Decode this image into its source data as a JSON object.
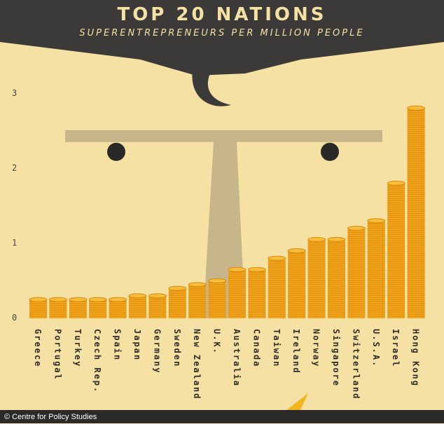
{
  "header": {
    "title": "TOP 20 NATIONS",
    "subtitle": "SUPERENTREPRENEURS PER MILLION PEOPLE"
  },
  "credit": "© Centre for Policy Studies",
  "colors": {
    "background": "#f4e1a3",
    "hat": "#3b3a38",
    "scale": "#c7b68a",
    "coin": "#f3a51c",
    "coin_line": "#d98a0d",
    "label": "#2f2c29"
  },
  "chart_data": {
    "type": "bar",
    "title": "TOP 20 NATIONS",
    "subtitle": "SUPERENTREPRENEURS PER MILLION PEOPLE",
    "xlabel": "",
    "ylabel": "",
    "ylim": [
      0,
      3
    ],
    "yticks": [
      "0",
      "1",
      "2",
      "3"
    ],
    "categories": [
      "Greece",
      "Portugal",
      "Turkey",
      "Czech Rep.",
      "Spain",
      "Japan",
      "Germany",
      "Sweden",
      "New Zealand",
      "U.K.",
      "Australia",
      "Canada",
      "Taiwan",
      "Ireland",
      "Norway",
      "Singapore",
      "Switzerland",
      "U.S.A.",
      "Israel",
      "Hong Kong"
    ],
    "values": [
      0.25,
      0.25,
      0.25,
      0.25,
      0.25,
      0.3,
      0.3,
      0.4,
      0.45,
      0.5,
      0.65,
      0.65,
      0.8,
      0.9,
      1.05,
      1.05,
      1.2,
      1.3,
      1.8,
      2.8
    ]
  }
}
